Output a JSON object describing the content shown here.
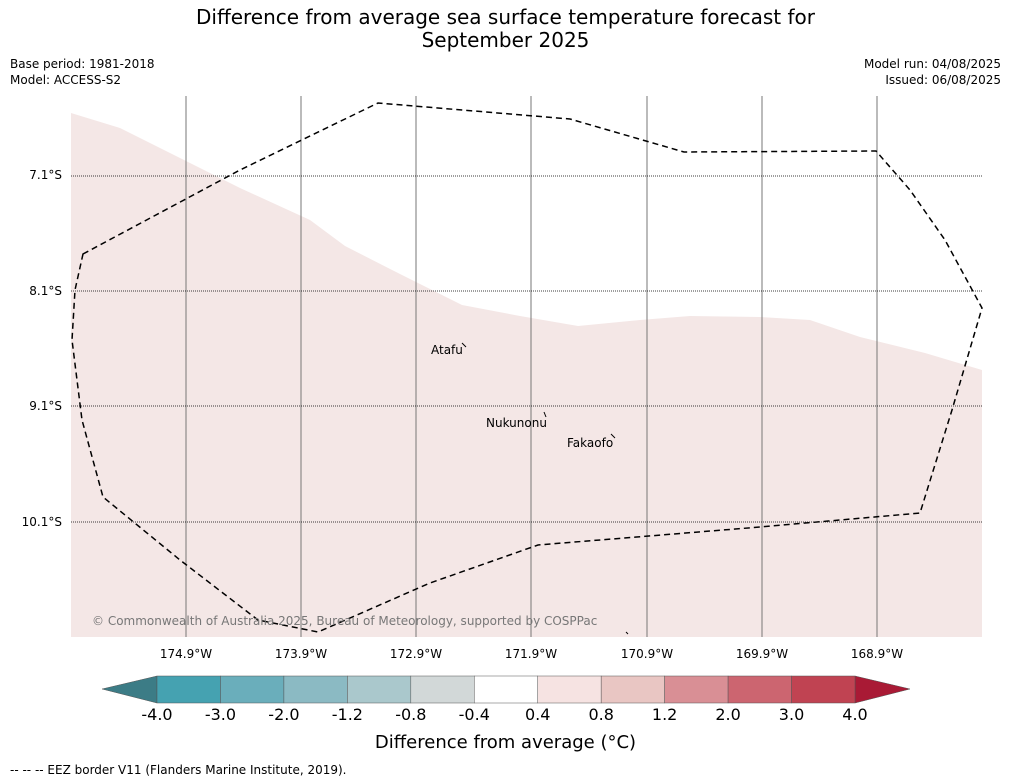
{
  "title": {
    "line1": "Difference from average sea surface temperature forecast for",
    "line2": "September 2025"
  },
  "meta": {
    "base_period": "Base period: 1981-2018",
    "model": "Model: ACCESS-S2",
    "model_run": "Model run: 04/08/2025",
    "issued": "Issued: 06/08/2025"
  },
  "axes": {
    "latitudes": [
      "7.1°S",
      "8.1°S",
      "9.1°S",
      "10.1°S"
    ],
    "longitudes": [
      "174.9°W",
      "173.9°W",
      "172.9°W",
      "171.9°W",
      "170.9°W",
      "169.9°W",
      "168.9°W"
    ]
  },
  "places": [
    "Atafu",
    "Nukunonu",
    "Fakaofo"
  ],
  "copyright": "© Commonwealth of Australia 2025, Bureau of Meteorology, supported by COSPPac",
  "colorbar": {
    "ticks": [
      "-4.0",
      "-3.0",
      "-2.0",
      "-1.2",
      "-0.8",
      "-0.4",
      "0.4",
      "0.8",
      "1.2",
      "2.0",
      "3.0",
      "4.0"
    ],
    "colors": [
      "#45a2b1",
      "#6aaebb",
      "#8bbac3",
      "#aac8cc",
      "#d2d8d8",
      "#ffffff",
      "#f6e3e2",
      "#e9c6c3",
      "#d98f95",
      "#cc6570",
      "#c04352"
    ],
    "under_color": "#3c7c86",
    "over_color": "#a91a35",
    "label": "Difference from average (°C)"
  },
  "map": {
    "anomaly_fill_color": "#f4e7e6",
    "eez_line_color": "#000000"
  },
  "legend": "-- -- -- EEZ border V11 (Flanders Marine Institute, 2019)."
}
